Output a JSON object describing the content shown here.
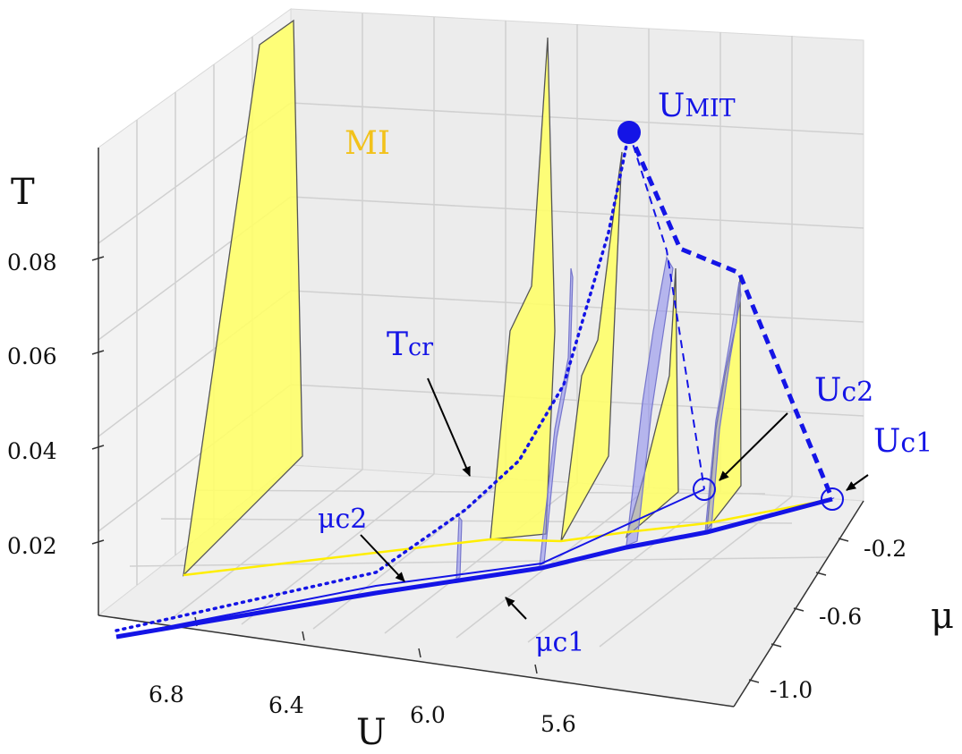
{
  "chart_data": {
    "type": "3d-surface",
    "axes": {
      "x": {
        "label": "U",
        "ticks": [
          "6.8",
          "6.4",
          "6.0",
          "5.6"
        ]
      },
      "y": {
        "label": "μ",
        "ticks": [
          "-0.2",
          "-0.6",
          "-1.0"
        ]
      },
      "z": {
        "label": "T",
        "ticks": [
          "0.02",
          "0.04",
          "0.06",
          "0.08"
        ]
      }
    },
    "grid": true,
    "annotations": {
      "mi": "MI",
      "umit": {
        "main": "U",
        "sub": "MIT"
      },
      "tcr": {
        "main": "T",
        "sub": "cr"
      },
      "uc2": {
        "main": "U",
        "sub": "c2"
      },
      "uc1": {
        "main": "U",
        "sub": "c1"
      },
      "muc2": {
        "main": "μ",
        "sub": "c2"
      },
      "muc1": {
        "main": "μ",
        "sub": "c1"
      }
    },
    "colors": {
      "mi_region": "#ffff66",
      "mi_label": "#f2c21b",
      "critical_lines": "#1414e6",
      "coexistence": "#8888ee"
    }
  }
}
